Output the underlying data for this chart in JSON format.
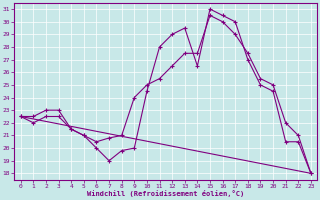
{
  "xlabel": "Windchill (Refroidissement éolien,°C)",
  "bg_color": "#c8e8e8",
  "line_color": "#800080",
  "grid_color": "#ffffff",
  "xlim": [
    -0.5,
    23.5
  ],
  "ylim": [
    17.5,
    31.5
  ],
  "xticks": [
    0,
    1,
    2,
    3,
    4,
    5,
    6,
    7,
    8,
    9,
    10,
    11,
    12,
    13,
    14,
    15,
    16,
    17,
    18,
    19,
    20,
    21,
    22,
    23
  ],
  "yticks": [
    18,
    19,
    20,
    21,
    22,
    23,
    24,
    25,
    26,
    27,
    28,
    29,
    30,
    31
  ],
  "line1_x": [
    0,
    1,
    2,
    3,
    4,
    5,
    6,
    7,
    8,
    9,
    10,
    11,
    12,
    13,
    14,
    15,
    16,
    17,
    18,
    19,
    20,
    21,
    22,
    23
  ],
  "line1_y": [
    22.5,
    22.0,
    22.5,
    22.5,
    21.5,
    21.0,
    20.5,
    20.8,
    21.0,
    24.0,
    25.0,
    25.5,
    26.5,
    27.5,
    27.5,
    30.5,
    30.0,
    29.0,
    27.5,
    25.5,
    25.0,
    22.0,
    21.0,
    18.0
  ],
  "line2_x": [
    0,
    1,
    2,
    3,
    4,
    5,
    6,
    7,
    8,
    9,
    10,
    11,
    12,
    13,
    14,
    15,
    16,
    17,
    18,
    19,
    20,
    21,
    22,
    23
  ],
  "line2_y": [
    22.5,
    22.5,
    23.0,
    23.0,
    21.5,
    21.0,
    20.0,
    19.0,
    19.8,
    20.0,
    24.5,
    28.0,
    29.0,
    29.5,
    26.5,
    31.0,
    30.5,
    30.0,
    27.0,
    25.0,
    24.5,
    20.5,
    20.5,
    18.0
  ],
  "line3_x": [
    0,
    23
  ],
  "line3_y": [
    22.5,
    18.0
  ]
}
